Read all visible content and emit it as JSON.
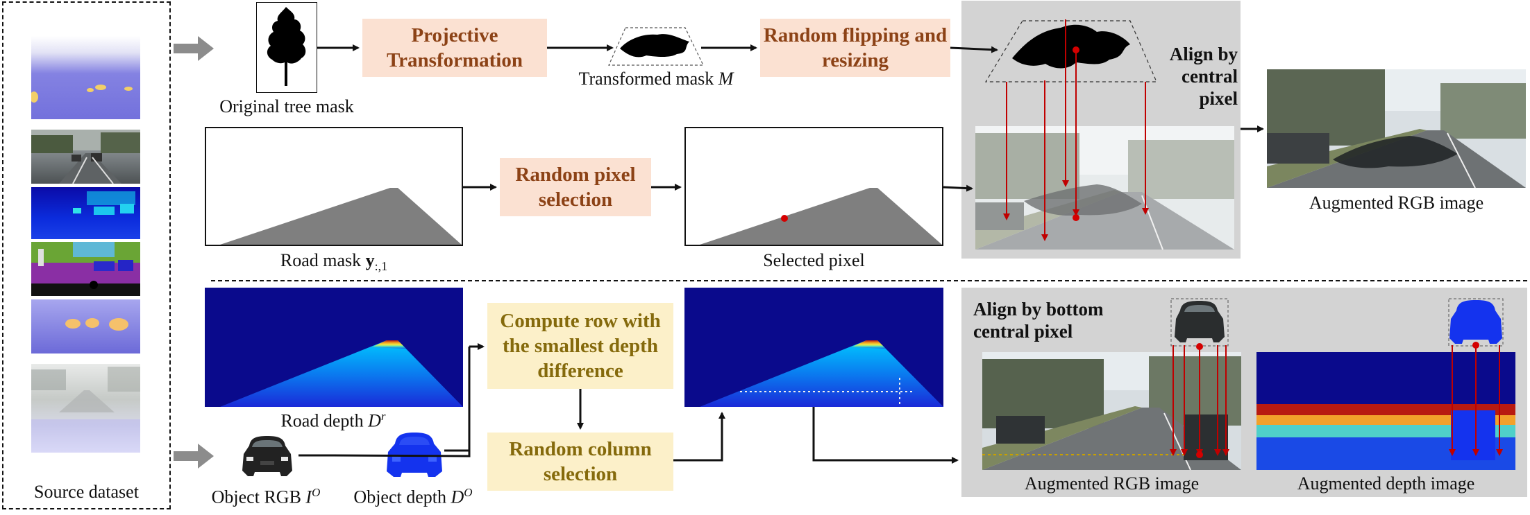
{
  "source": {
    "label": "Source dataset"
  },
  "top": {
    "original_mask_label": "Original tree mask",
    "projective_label": "Projective Transformation",
    "transformed_label_prefix": "Transformed mask ",
    "transformed_label_var": "M",
    "random_flip_label": "Random flipping and resizing",
    "align_central_label": "Align by central pixel",
    "augmented_rgb_label": "Augmented RGB image"
  },
  "middle": {
    "road_mask_label_prefix": "Road mask ",
    "road_mask_label_var": "y",
    "road_mask_label_sub": ":,1",
    "random_pixel_label": "Random pixel selection",
    "selected_pixel_label": "Selected pixel"
  },
  "bottom": {
    "road_depth_label_prefix": "Road depth ",
    "road_depth_label_var": "D",
    "road_depth_label_sup": "r",
    "object_rgb_label_prefix": "Object RGB ",
    "object_rgb_label_var": "I",
    "object_rgb_label_sup": "O",
    "object_depth_label_prefix": "Object depth ",
    "object_depth_label_var": "D",
    "object_depth_label_sup": "O",
    "compute_row_label": "Compute row with the smallest depth difference",
    "random_column_label": "Random column selection",
    "align_bottom_label": "Align by bottom central pixel",
    "augmented_rgb_label": "Augmented RGB image",
    "augmented_depth_label": "Augmented depth image"
  },
  "colors": {
    "peach_box": "#fbe1d2",
    "peach_text": "#8c4216",
    "yellow_box": "#fcf0c9",
    "yellow_text": "#856a0c",
    "panel_gray": "#d3d3d3",
    "red_marker": "#d40000",
    "road_gray": "#7f7f7f",
    "depth_blue": "#0a0a8c"
  }
}
